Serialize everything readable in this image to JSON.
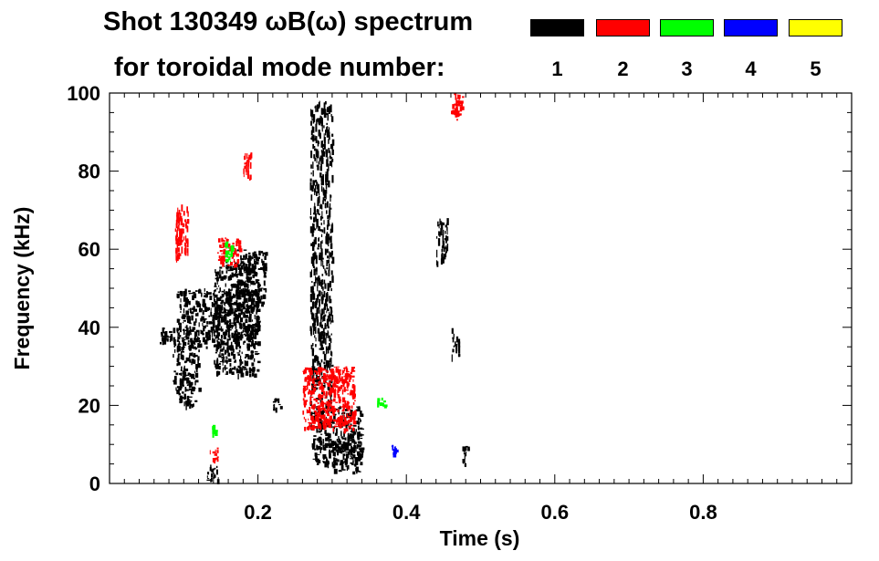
{
  "chart_data": {
    "type": "heatmap",
    "title": "Shot 130349 ωB(ω) spectrum",
    "subtitle": "for toroidal mode number:",
    "xlabel": "Time (s)",
    "ylabel": "Frequency (kHz)",
    "xlim": [
      0.0,
      1.0
    ],
    "ylim": [
      0,
      100
    ],
    "x_ticks": [
      0.2,
      0.4,
      0.6,
      0.8
    ],
    "x_tick_labels": [
      "0.2",
      "0.4",
      "0.6",
      "0.8"
    ],
    "y_ticks": [
      0,
      20,
      40,
      60,
      80,
      100
    ],
    "y_tick_labels": [
      "0",
      "20",
      "40",
      "60",
      "80",
      "100"
    ],
    "legend": [
      {
        "mode": "1",
        "color": "#000000"
      },
      {
        "mode": "2",
        "color": "#ff0000"
      },
      {
        "mode": "3",
        "color": "#00ff00"
      },
      {
        "mode": "4",
        "color": "#0000ff"
      },
      {
        "mode": "5",
        "color": "#ffff00"
      }
    ],
    "regions": [
      {
        "mode": 1,
        "t": [
          0.065,
          0.09
        ],
        "f": [
          36,
          40
        ]
      },
      {
        "mode": 1,
        "t": [
          0.085,
          0.12
        ],
        "f": [
          24,
          38
        ]
      },
      {
        "mode": 1,
        "t": [
          0.09,
          0.115
        ],
        "f": [
          20,
          28
        ]
      },
      {
        "mode": 1,
        "t": [
          0.09,
          0.2
        ],
        "f": [
          35,
          50
        ]
      },
      {
        "mode": 1,
        "t": [
          0.14,
          0.2
        ],
        "f": [
          28,
          57
        ]
      },
      {
        "mode": 1,
        "t": [
          0.17,
          0.21
        ],
        "f": [
          45,
          60
        ]
      },
      {
        "mode": 1,
        "t": [
          0.13,
          0.15
        ],
        "f": [
          1,
          5
        ]
      },
      {
        "mode": 1,
        "t": [
          0.22,
          0.23
        ],
        "f": [
          19,
          22
        ]
      },
      {
        "mode": 1,
        "t": [
          0.27,
          0.34
        ],
        "f": [
          5,
          20
        ]
      },
      {
        "mode": 1,
        "t": [
          0.3,
          0.34
        ],
        "f": [
          3,
          13
        ]
      },
      {
        "mode": 1,
        "t": [
          0.27,
          0.3
        ],
        "f": [
          20,
          28
        ]
      },
      {
        "mode": 1,
        "t": [
          0.27,
          0.285
        ],
        "f": [
          28,
          98
        ]
      },
      {
        "mode": 1,
        "t": [
          0.285,
          0.3
        ],
        "f": [
          30,
          98
        ]
      },
      {
        "mode": 1,
        "t": [
          0.44,
          0.455
        ],
        "f": [
          56,
          68
        ]
      },
      {
        "mode": 1,
        "t": [
          0.46,
          0.47
        ],
        "f": [
          32,
          40
        ]
      },
      {
        "mode": 1,
        "t": [
          0.475,
          0.485
        ],
        "f": [
          5,
          10
        ]
      },
      {
        "mode": 2,
        "t": [
          0.088,
          0.105
        ],
        "f": [
          58,
          72
        ]
      },
      {
        "mode": 2,
        "t": [
          0.145,
          0.175
        ],
        "f": [
          56,
          63
        ]
      },
      {
        "mode": 2,
        "t": [
          0.135,
          0.145
        ],
        "f": [
          6,
          10
        ]
      },
      {
        "mode": 2,
        "t": [
          0.26,
          0.33
        ],
        "f": [
          14,
          30
        ]
      },
      {
        "mode": 2,
        "t": [
          0.46,
          0.475
        ],
        "f": [
          93,
          100
        ]
      },
      {
        "mode": 2,
        "t": [
          0.18,
          0.19
        ],
        "f": [
          78,
          85
        ]
      },
      {
        "mode": 3,
        "t": [
          0.155,
          0.165
        ],
        "f": [
          57,
          62
        ]
      },
      {
        "mode": 3,
        "t": [
          0.138,
          0.142
        ],
        "f": [
          13,
          15
        ]
      },
      {
        "mode": 3,
        "t": [
          0.36,
          0.37
        ],
        "f": [
          20,
          22
        ]
      },
      {
        "mode": 4,
        "t": [
          0.38,
          0.385
        ],
        "f": [
          8,
          10
        ]
      }
    ]
  }
}
